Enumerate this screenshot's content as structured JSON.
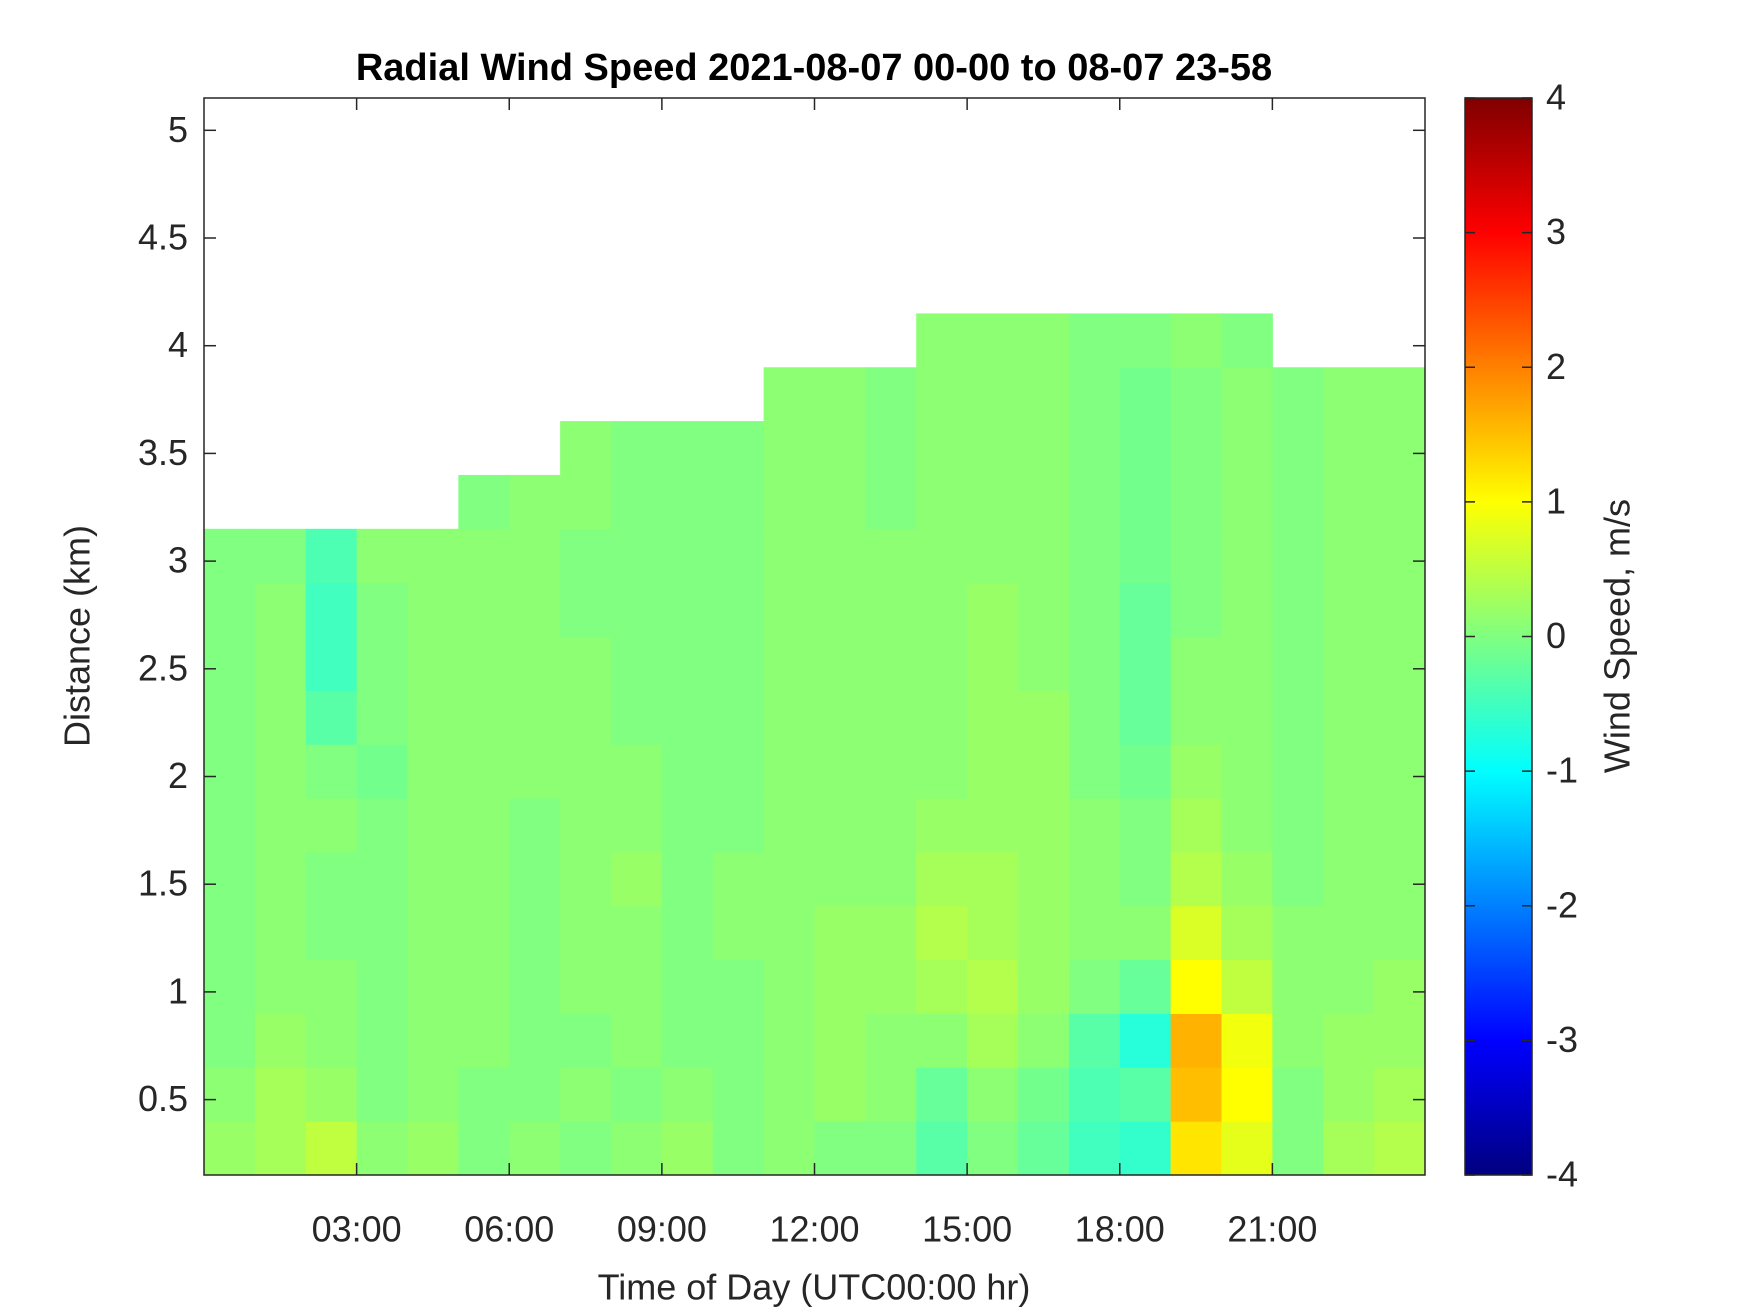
{
  "chart_data": {
    "type": "heatmap",
    "title": "Radial Wind Speed 2021-08-07 00-00 to 08-07 23-58",
    "xlabel": "Time of Day (UTC00:00 hr)",
    "ylabel": "Distance (km)",
    "colormap": "jet",
    "x_edges": [
      0,
      1,
      2,
      3,
      4,
      5,
      6,
      7,
      8,
      9,
      10,
      11,
      12,
      13,
      14,
      15,
      16,
      17,
      18,
      19,
      20,
      21,
      22,
      23,
      24
    ],
    "y_edges": [
      0.15,
      0.4,
      0.65,
      0.9,
      1.15,
      1.4,
      1.65,
      1.9,
      2.15,
      2.4,
      2.65,
      2.9,
      3.15,
      3.4,
      3.65,
      3.9,
      4.15,
      4.4,
      4.65,
      4.9,
      5.15
    ],
    "values": [
      [
        0.2,
        0.3,
        0.5,
        0.1,
        0.2,
        0,
        0.1,
        0,
        0.1,
        0.2,
        0,
        0.1,
        0,
        0,
        -0.3,
        0,
        -0.2,
        -0.5,
        -0.6,
        1.2,
        0.8,
        0,
        0.3,
        0.4
      ],
      [
        0.1,
        0.3,
        0.2,
        0,
        0.1,
        0,
        0,
        0.1,
        0,
        0.1,
        0,
        0.1,
        0.2,
        0.1,
        -0.2,
        0.1,
        -0.1,
        -0.4,
        -0.3,
        1.5,
        1.0,
        0,
        0.2,
        0.3
      ],
      [
        0,
        0.2,
        0.1,
        0,
        0.1,
        0.1,
        0,
        0,
        0.1,
        0,
        0,
        0.1,
        0.2,
        0.1,
        0.1,
        0.3,
        0.1,
        -0.3,
        -0.7,
        1.6,
        0.9,
        0.1,
        0.2,
        0.2
      ],
      [
        0,
        0.1,
        0.1,
        0,
        0.1,
        0.1,
        0,
        0.1,
        0.1,
        0,
        0,
        0.1,
        0.2,
        0.2,
        0.3,
        0.4,
        0.2,
        0,
        -0.2,
        1.0,
        0.5,
        0.1,
        0.1,
        0.2
      ],
      [
        0,
        0.1,
        0,
        0,
        0.1,
        0.1,
        0,
        0.1,
        0.1,
        0,
        0.1,
        0.1,
        0.2,
        0.2,
        0.4,
        0.3,
        0.2,
        0.1,
        0.1,
        0.7,
        0.3,
        0.1,
        0.1,
        0.1
      ],
      [
        0,
        0.1,
        0,
        0,
        0.1,
        0.1,
        0,
        0.1,
        0.2,
        0,
        0.1,
        0.1,
        0.1,
        0.1,
        0.3,
        0.3,
        0.2,
        0.1,
        0,
        0.4,
        0.2,
        0,
        0.1,
        0.1
      ],
      [
        0,
        0.1,
        0.1,
        0,
        0.1,
        0.1,
        0,
        0.1,
        0.1,
        0,
        0,
        0.1,
        0.1,
        0.1,
        0.2,
        0.2,
        0.2,
        0.1,
        0,
        0.3,
        0.1,
        0,
        0.1,
        0.1
      ],
      [
        0,
        0.1,
        0,
        -0.1,
        0.1,
        0.1,
        0.1,
        0.1,
        0.1,
        0,
        0,
        0.1,
        0.1,
        0.1,
        0.1,
        0.2,
        0.2,
        0,
        -0.1,
        0.2,
        0.1,
        0,
        0.1,
        0.1
      ],
      [
        0,
        0.1,
        -0.3,
        0,
        0.1,
        0.1,
        0.1,
        0.1,
        0,
        0,
        0,
        0.1,
        0.1,
        0.1,
        0.1,
        0.2,
        0.2,
        0,
        -0.2,
        0.1,
        0.1,
        0,
        0.1,
        0.1
      ],
      [
        0,
        0.1,
        -0.5,
        0,
        0.1,
        0.1,
        0.1,
        0.1,
        0,
        0,
        0,
        0.1,
        0.1,
        0.1,
        0.1,
        0.2,
        0.1,
        0,
        -0.2,
        0.1,
        0.1,
        0,
        0.1,
        0.1
      ],
      [
        0,
        0.1,
        -0.5,
        0,
        0.1,
        0.1,
        0.1,
        0,
        0,
        0,
        0,
        0.1,
        0.1,
        0.1,
        0.1,
        0.2,
        0.1,
        0,
        -0.2,
        0,
        0.1,
        0,
        0.1,
        0.1
      ],
      [
        0,
        0,
        -0.4,
        0.1,
        0.1,
        0.1,
        0.1,
        0,
        0,
        0,
        0,
        0.1,
        0.1,
        0.1,
        0.1,
        0.1,
        0.1,
        0,
        -0.1,
        0,
        0.1,
        0,
        0.1,
        0.1
      ],
      [
        null,
        null,
        null,
        null,
        null,
        0,
        0.1,
        0.1,
        0,
        0,
        0,
        0.1,
        0.1,
        0,
        0.1,
        0.1,
        0.1,
        0,
        -0.1,
        0,
        0.1,
        0,
        0.1,
        0.1
      ],
      [
        null,
        null,
        null,
        null,
        null,
        null,
        null,
        0.1,
        0,
        0,
        0,
        0.1,
        0.1,
        0,
        0.1,
        0.1,
        0.1,
        0,
        -0.1,
        0,
        0.1,
        0,
        0.1,
        0.1
      ],
      [
        null,
        null,
        null,
        null,
        null,
        null,
        null,
        null,
        null,
        null,
        null,
        0.1,
        0.1,
        0,
        0.1,
        0.1,
        0.1,
        0,
        -0.1,
        0,
        0.1,
        0,
        0.1,
        0.1
      ],
      [
        null,
        null,
        null,
        null,
        null,
        null,
        null,
        null,
        null,
        null,
        null,
        null,
        null,
        null,
        0.1,
        0.1,
        0.1,
        0,
        0,
        0.1,
        0,
        null,
        null,
        null
      ],
      [
        null,
        null,
        null,
        null,
        null,
        null,
        null,
        null,
        null,
        null,
        null,
        null,
        null,
        null,
        null,
        null,
        null,
        null,
        null,
        null,
        null,
        null,
        null,
        null
      ],
      [
        null,
        null,
        null,
        null,
        null,
        null,
        null,
        null,
        null,
        null,
        null,
        null,
        null,
        null,
        null,
        null,
        null,
        null,
        null,
        null,
        null,
        null,
        null,
        null
      ],
      [
        null,
        null,
        null,
        null,
        null,
        null,
        null,
        null,
        null,
        null,
        null,
        null,
        null,
        null,
        null,
        null,
        null,
        null,
        null,
        null,
        null,
        null,
        null,
        null
      ],
      [
        null,
        null,
        null,
        null,
        null,
        null,
        null,
        null,
        null,
        null,
        null,
        null,
        null,
        null,
        null,
        null,
        null,
        null,
        null,
        null,
        null,
        null,
        null,
        null
      ]
    ],
    "xlim": [
      0,
      24
    ],
    "ylim": [
      0.15,
      5.15
    ],
    "xticks": [
      {
        "value": 3,
        "label": "03:00"
      },
      {
        "value": 6,
        "label": "06:00"
      },
      {
        "value": 9,
        "label": "09:00"
      },
      {
        "value": 12,
        "label": "12:00"
      },
      {
        "value": 15,
        "label": "15:00"
      },
      {
        "value": 18,
        "label": "18:00"
      },
      {
        "value": 21,
        "label": "21:00"
      }
    ],
    "yticks": [
      0.5,
      1,
      1.5,
      2,
      2.5,
      3,
      3.5,
      4,
      4.5,
      5
    ],
    "colorbar": {
      "label": "Wind Speed, m/s",
      "clim": [
        -4,
        4
      ],
      "ticks": [
        -4,
        -3,
        -2,
        -1,
        0,
        1,
        2,
        3,
        4
      ]
    }
  }
}
